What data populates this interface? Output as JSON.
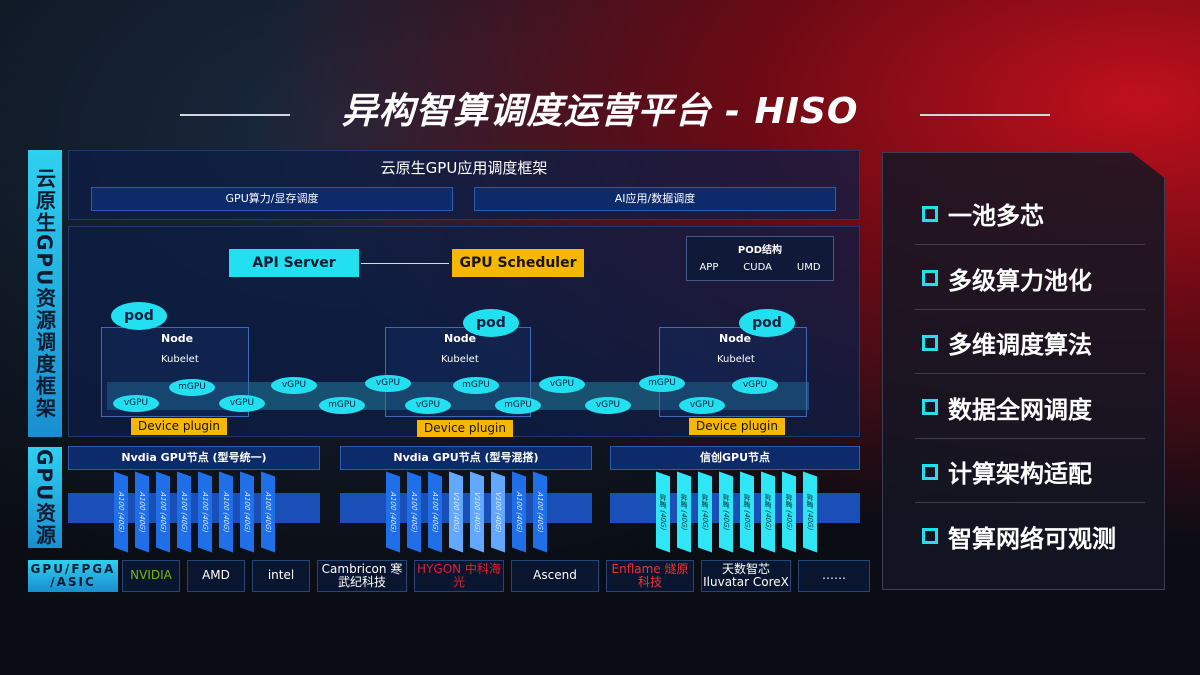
{
  "title": "异构智算调度运营平台 - HISO",
  "left_labels": {
    "top": "云原生GPU资源调度框架",
    "bottom": "GPU资源",
    "vendors": "GPU/FPGA /ASIC"
  },
  "framework": {
    "title": "云原生GPU应用调度框架",
    "bars": [
      "GPU算力/显存调度",
      "AI应用/数据调度"
    ]
  },
  "api_server": "API Server",
  "gpu_scheduler": "GPU Scheduler",
  "pod_structure": {
    "title": "POD结构",
    "items": [
      "APP",
      "CUDA",
      "UMD"
    ]
  },
  "pod": "pod",
  "node": "Node",
  "kubelet": "Kubelet",
  "device_plugin": "Device plugin",
  "vgpu": "vGPU",
  "mgpu": "mGPU",
  "gpu_nodes": [
    {
      "title": "Nvdia GPU节点 (型号统一)",
      "cards": [
        "A100 (40G)",
        "A100 (40G)",
        "A100 (40G)",
        "A100 (40G)",
        "A100 (40G)",
        "A100 (40G)",
        "A100 (40G)",
        "A100 (40G)"
      ]
    },
    {
      "title": "Nvdia GPU节点 (型号混搭)",
      "cards": [
        "A100 (40G)",
        "A100 (40G)",
        "A100 (40G)",
        "V100 (40G)",
        "V100 (40G)",
        "V100 (40G)",
        "A100 (40G)",
        "A100 (40G)"
      ]
    },
    {
      "title": "信创GPU节点",
      "cards": [
        "昇腾 (40G)",
        "昇腾 (40G)",
        "昇腾 (40G)",
        "昇腾 (40G)",
        "昇腾 (40G)",
        "昇腾 (40G)",
        "昇腾 (40G)",
        "昇腾 (40G)"
      ]
    }
  ],
  "vendors": [
    "NVIDIA",
    "AMD",
    "intel",
    "Cambricon 寒武纪科技",
    "HYGON 中科海光",
    "Ascend",
    "Enflame 燧原科技",
    "天数智芯 Iluvatar CoreX",
    "……"
  ],
  "features": [
    "一池多芯",
    "多级算力池化",
    "多维调度算法",
    "数据全网调度",
    "计算架构适配",
    "智算网络可观测"
  ],
  "colors": {
    "cyan": "#22e0f0",
    "yellow": "#f5b800",
    "red": "#c0101c"
  }
}
